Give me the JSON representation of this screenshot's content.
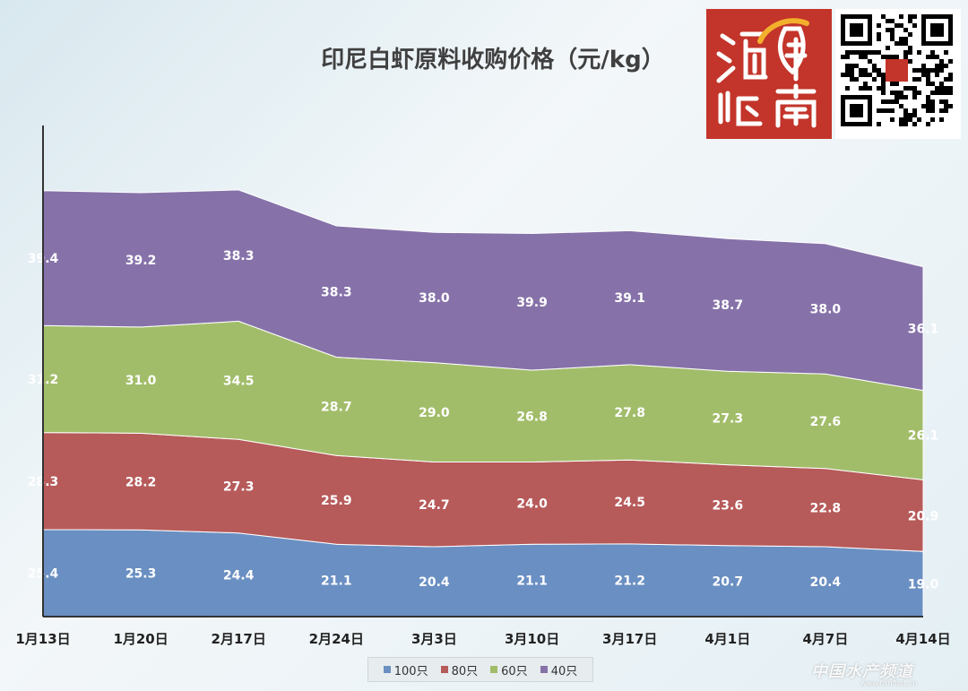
{
  "chart_data": {
    "type": "area",
    "stacked": true,
    "title": "印尼白虾原料收购价格（元/kg）",
    "categories": [
      "1月13日",
      "1月20日",
      "2月17日",
      "2月24日",
      "3月3日",
      "3月10日",
      "3月17日",
      "4月1日",
      "4月7日",
      "4月14日"
    ],
    "series": [
      {
        "name": "100只",
        "color": "#6a8fc2",
        "values": [
          25.4,
          25.3,
          24.4,
          21.1,
          20.4,
          21.1,
          21.2,
          20.7,
          20.4,
          19.0
        ]
      },
      {
        "name": "80只",
        "color": "#b75a5a",
        "values": [
          28.3,
          28.2,
          27.3,
          25.9,
          24.7,
          24.0,
          24.5,
          23.6,
          22.8,
          20.9
        ]
      },
      {
        "name": "60只",
        "color": "#a2bd6a",
        "values": [
          31.2,
          31.0,
          34.5,
          28.7,
          29.0,
          26.8,
          27.8,
          27.3,
          27.6,
          26.1
        ]
      },
      {
        "name": "40只",
        "color": "#8672a9",
        "values": [
          39.4,
          39.2,
          38.3,
          38.3,
          38.0,
          39.9,
          39.1,
          38.7,
          38.0,
          36.1
        ]
      }
    ],
    "legend_position": "bottom",
    "grid": false
  },
  "logo": {
    "text": "海鲜指南",
    "color": "#c3342a"
  },
  "qr_icon": "qr-code-icon",
  "watermark": {
    "text": "中国水产频道",
    "sub": "www.fishfirst.cn"
  }
}
